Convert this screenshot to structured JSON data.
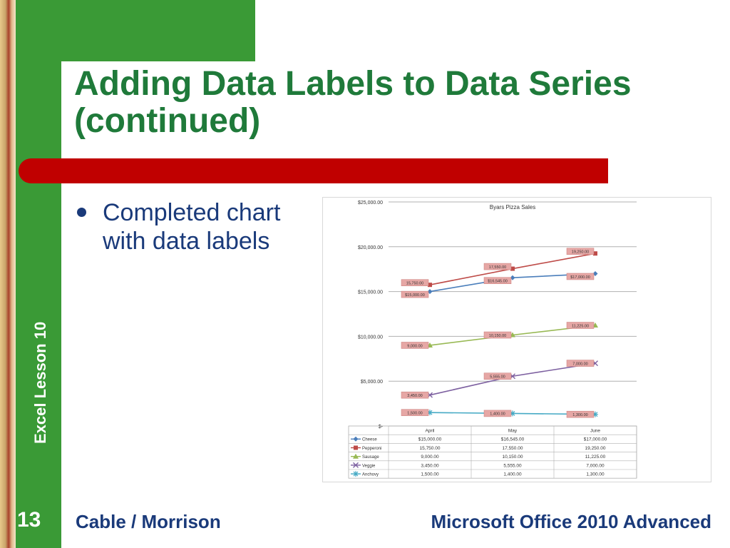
{
  "slide": {
    "title_line1": "Adding Data Labels to Data Series",
    "title_line2": "(continued)",
    "bullet": [
      "Completed chart",
      "with data labels"
    ],
    "side_label": "Excel Lesson 10",
    "page_number": "13",
    "footer_left": "Cable / Morrison",
    "footer_right": "Microsoft Office 2010 Advanced"
  },
  "colors": {
    "green": "#3a9a36",
    "title": "#1f7a3a",
    "red_bar": "#c00000",
    "text_blue": "#1a3a7a"
  },
  "chart_data": {
    "type": "line",
    "title": "Byars Pizza Sales",
    "categories": [
      "April",
      "May",
      "June"
    ],
    "ylim": [
      0,
      25000
    ],
    "y_ticks": [
      0,
      5000,
      10000,
      15000,
      20000,
      25000
    ],
    "y_tick_labels": [
      "$-",
      "$5,000.00",
      "$10,000.00",
      "$15,000.00",
      "$20,000.00",
      "$25,000.00"
    ],
    "grid": true,
    "legend": "data-table",
    "series": [
      {
        "name": "Cheese",
        "color": "#4a7ebb",
        "marker": "diamond",
        "values": [
          15000,
          16545,
          17000
        ],
        "labels": [
          "$15,000.00",
          "$16,545.00",
          "$17,000.00"
        ]
      },
      {
        "name": "Pepperoni",
        "color": "#be4b48",
        "marker": "square",
        "values": [
          15750,
          17550,
          19250
        ],
        "labels": [
          "15,750.00",
          "17,550.00",
          "19,250.00"
        ]
      },
      {
        "name": "Sausage",
        "color": "#98b954",
        "marker": "triangle",
        "values": [
          9000,
          10150,
          11225
        ],
        "labels": [
          "9,000.00",
          "10,150.00",
          "11,225.00"
        ]
      },
      {
        "name": "Veggie",
        "color": "#7d60a0",
        "marker": "x",
        "values": [
          3450,
          5555,
          7000
        ],
        "labels": [
          "3,450.00",
          "5,555.00",
          "7,000.00"
        ]
      },
      {
        "name": "Anchovy",
        "color": "#46aac5",
        "marker": "star",
        "values": [
          1500,
          1400,
          1300
        ],
        "labels": [
          "1,500.00",
          "1,400.00",
          "1,300.00"
        ]
      }
    ]
  }
}
